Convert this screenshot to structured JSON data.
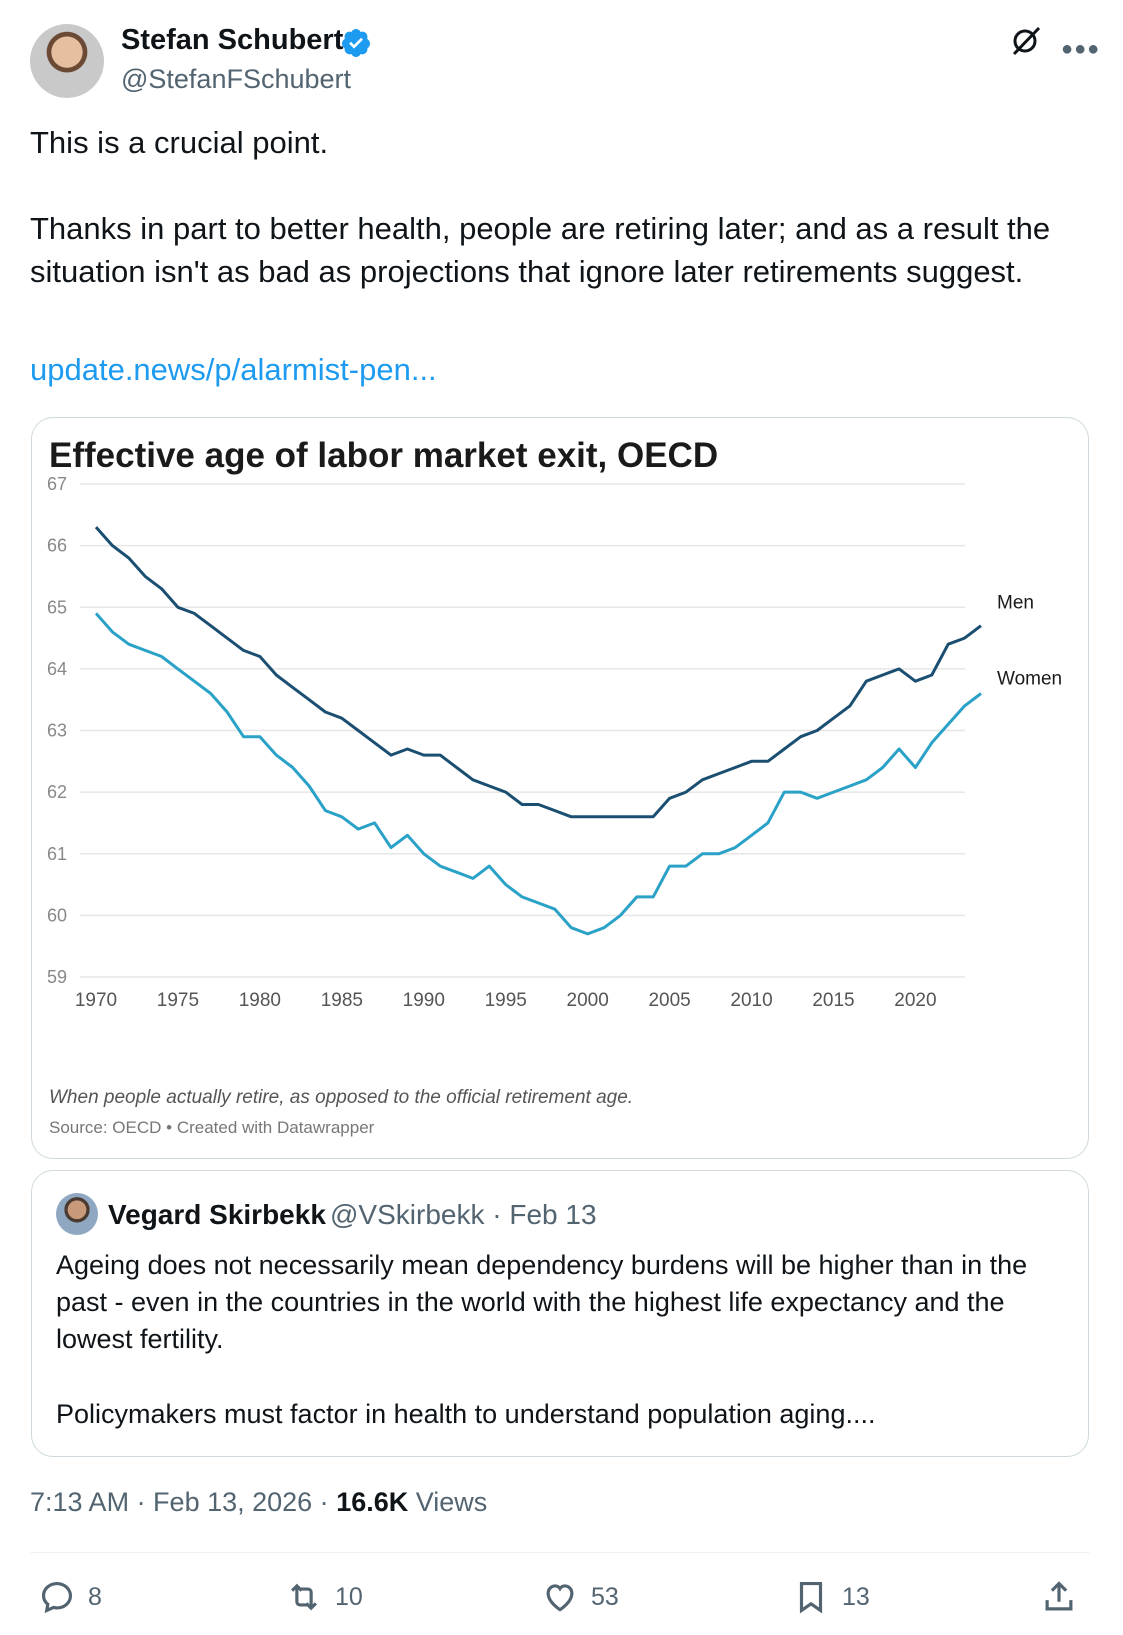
{
  "author": {
    "name": "Stefan Schubert",
    "handle": "@StefanFSchubert"
  },
  "tweet": {
    "line1": "This is a crucial point.",
    "line2": "Thanks in part to better health, people are retiring later; and as a result the",
    "line3": "situation isn't as bad as projections that ignore later retirements suggest.",
    "link": "update.news/p/alarmist-pen..."
  },
  "chart_data": {
    "type": "line",
    "title": "Effective age of labor market exit, OECD",
    "subtitle": "When people actually retire, as opposed to the official retirement age.",
    "source": "Source: OECD • Created with Datawrapper",
    "xlim": [
      1970,
      2024
    ],
    "ylim": [
      59,
      67
    ],
    "yticks": [
      67,
      66,
      65,
      64,
      63,
      62,
      61,
      60,
      59
    ],
    "xticks": [
      1970,
      1975,
      1980,
      1985,
      1990,
      1995,
      2000,
      2005,
      2010,
      2015,
      2020
    ],
    "x": [
      1970,
      1971,
      1972,
      1973,
      1974,
      1975,
      1976,
      1977,
      1978,
      1979,
      1980,
      1981,
      1982,
      1983,
      1984,
      1985,
      1986,
      1987,
      1988,
      1989,
      1990,
      1991,
      1992,
      1993,
      1994,
      1995,
      1996,
      1997,
      1998,
      1999,
      2000,
      2001,
      2002,
      2003,
      2004,
      2005,
      2006,
      2007,
      2008,
      2009,
      2010,
      2011,
      2012,
      2013,
      2014,
      2015,
      2016,
      2017,
      2018,
      2019,
      2020,
      2021,
      2022,
      2023,
      2024
    ],
    "series": [
      {
        "name": "Men",
        "color": "#1b4f72",
        "values": [
          66.3,
          66.0,
          65.8,
          65.5,
          65.3,
          65.0,
          64.9,
          64.7,
          64.5,
          64.3,
          64.2,
          63.9,
          63.7,
          63.5,
          63.3,
          63.2,
          63.0,
          62.8,
          62.6,
          62.7,
          62.6,
          62.6,
          62.4,
          62.2,
          62.1,
          62.0,
          61.8,
          61.8,
          61.7,
          61.6,
          61.6,
          61.6,
          61.6,
          61.6,
          61.6,
          61.9,
          62.0,
          62.2,
          62.3,
          62.4,
          62.5,
          62.5,
          62.7,
          62.9,
          63.0,
          63.2,
          63.4,
          63.8,
          63.9,
          64.0,
          63.8,
          63.9,
          64.4,
          64.5,
          64.7
        ]
      },
      {
        "name": "Women",
        "color": "#2aa1c7",
        "values": [
          64.9,
          64.6,
          64.4,
          64.3,
          64.2,
          64.0,
          63.8,
          63.6,
          63.3,
          62.9,
          62.9,
          62.6,
          62.4,
          62.1,
          61.7,
          61.6,
          61.4,
          61.5,
          61.1,
          61.3,
          61.0,
          60.8,
          60.7,
          60.6,
          60.8,
          60.5,
          60.3,
          60.2,
          60.1,
          59.8,
          59.7,
          59.8,
          60.0,
          60.3,
          60.3,
          60.8,
          60.8,
          61.0,
          61.0,
          61.1,
          61.3,
          61.5,
          62.0,
          62.0,
          61.9,
          62.0,
          62.1,
          62.2,
          62.4,
          62.7,
          62.4,
          62.8,
          63.1,
          63.4,
          63.6
        ]
      }
    ]
  },
  "quote": {
    "name": "Vegard Skirbekk",
    "meta": "@VSkirbekk · Feb 13",
    "line1": "Ageing does not necessarily mean dependency burdens will be higher than in the",
    "line2": "past - even in the countries in the world with the highest life expectancy and the",
    "line3": "lowest fertility.",
    "line4": "Policymakers must factor in health to understand population aging...."
  },
  "meta": {
    "time": "7:13 AM · Feb 13, 2026 · ",
    "views_count": "16.6K",
    "views_label": " Views"
  },
  "actions": {
    "replies": "8",
    "reposts": "10",
    "likes": "53",
    "bookmarks": "13"
  },
  "colors": {
    "accent": "#1d9bf0",
    "muted": "#536471"
  }
}
